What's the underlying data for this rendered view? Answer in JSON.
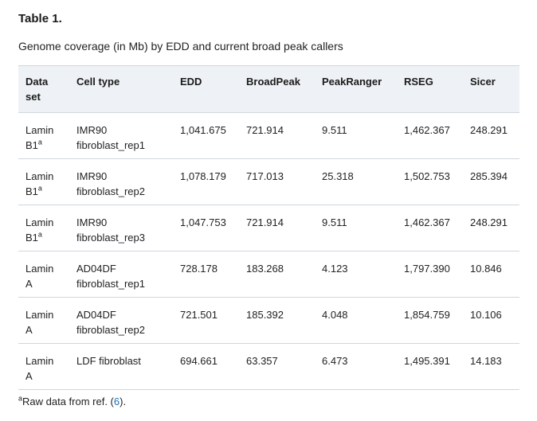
{
  "title": "Table 1.",
  "caption": "Genome coverage (in Mb) by EDD and current broad peak callers",
  "headers": {
    "dataset_a": "Data",
    "dataset_b": "set",
    "cell_type": "Cell type",
    "edd": "EDD",
    "broadpeak": "BroadPeak",
    "peakranger": "PeakRanger",
    "rseg": "RSEG",
    "sicer": "Sicer"
  },
  "rows": [
    {
      "set_a": "Lamin",
      "set_b": "B1",
      "sup": "a",
      "cell_a": "IMR90",
      "cell_b": "fibroblast_rep1",
      "edd": "1,041.675",
      "broadpeak": "721.914",
      "peakranger": "9.511",
      "rseg": "1,462.367",
      "sicer": "248.291"
    },
    {
      "set_a": "Lamin",
      "set_b": "B1",
      "sup": "a",
      "cell_a": "IMR90",
      "cell_b": "fibroblast_rep2",
      "edd": "1,078.179",
      "broadpeak": "717.013",
      "peakranger": "25.318",
      "rseg": "1,502.753",
      "sicer": "285.394"
    },
    {
      "set_a": "Lamin",
      "set_b": "B1",
      "sup": "a",
      "cell_a": "IMR90",
      "cell_b": "fibroblast_rep3",
      "edd": "1,047.753",
      "broadpeak": "721.914",
      "peakranger": "9.511",
      "rseg": "1,462.367",
      "sicer": "248.291"
    },
    {
      "set_a": "Lamin",
      "set_b": "A",
      "sup": "",
      "cell_a": "AD04DF",
      "cell_b": "fibroblast_rep1",
      "edd": "728.178",
      "broadpeak": "183.268",
      "peakranger": "4.123",
      "rseg": "1,797.390",
      "sicer": "10.846"
    },
    {
      "set_a": "Lamin",
      "set_b": "A",
      "sup": "",
      "cell_a": "AD04DF",
      "cell_b": "fibroblast_rep2",
      "edd": "721.501",
      "broadpeak": "185.392",
      "peakranger": "4.048",
      "rseg": "1,854.759",
      "sicer": "10.106"
    },
    {
      "set_a": "Lamin",
      "set_b": "A",
      "sup": "",
      "cell_a": "LDF fibroblast",
      "cell_b": "",
      "edd": "694.661",
      "broadpeak": "63.357",
      "peakranger": "6.473",
      "rseg": "1,495.391",
      "sicer": "14.183"
    }
  ],
  "footnote": {
    "sup": "a",
    "text_before": "Raw data from ref. (",
    "ref": "6",
    "text_after": ")."
  }
}
